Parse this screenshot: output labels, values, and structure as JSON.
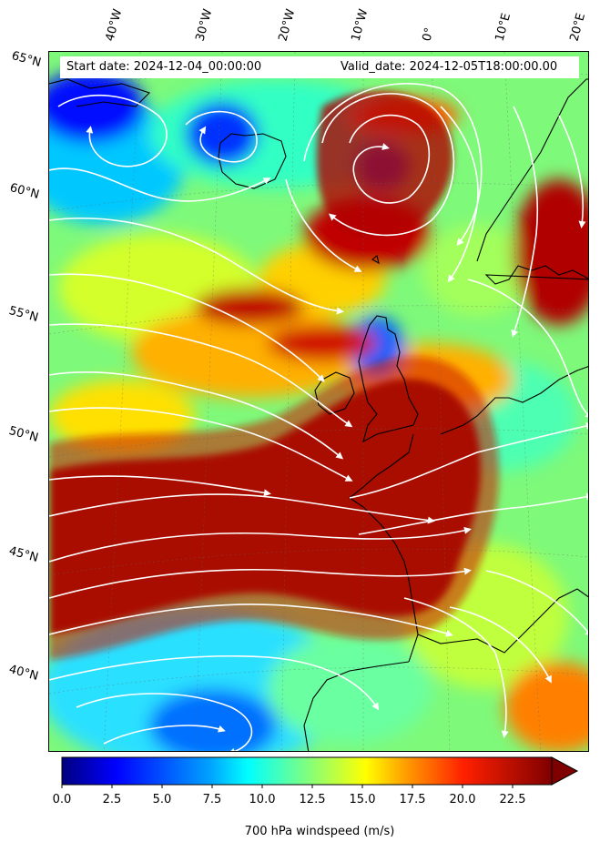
{
  "header": {
    "start_date": "Start date: 2024-12-04_00:00:00",
    "valid_date": "Valid_date: 2024-12-05T18:00:00.00"
  },
  "latitude_labels": [
    "65°N",
    "60°N",
    "55°N",
    "50°N",
    "45°N",
    "40°N"
  ],
  "longitude_labels": [
    "40°W",
    "30°W",
    "20°W",
    "10°W",
    "0°",
    "10°E",
    "20°E"
  ],
  "colorbar": {
    "label": "700 hPa windspeed (m/s)",
    "ticks": [
      "0.0",
      "2.5",
      "5.0",
      "7.5",
      "10.0",
      "12.5",
      "15.0",
      "17.5",
      "20.0",
      "22.5"
    ],
    "min": 0,
    "max": 25,
    "extend": "max",
    "colormap": "jet"
  },
  "colors": {
    "coastline": "#000000",
    "streamlines": "#ffffff",
    "jet_core": "#7f0000"
  }
}
